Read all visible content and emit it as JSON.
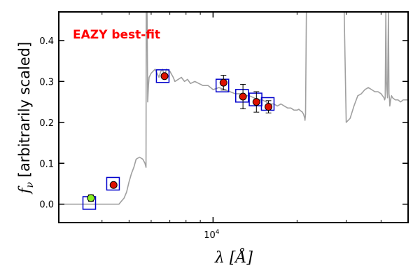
{
  "chart_data": {
    "type": "scatter",
    "annotation": "EAZY best-fit",
    "annotation_color": "#ff0000",
    "xlabel": "λ [Å]",
    "ylabel": "f",
    "ylabel_sub": "ν",
    "ylabel_rest": " [arbitrarily scaled]",
    "xscale": "log",
    "xlim": [
      2800,
      50000
    ],
    "ylim": [
      -0.045,
      0.47
    ],
    "x_tick_labels": [
      {
        "value": 10000,
        "base": "10",
        "exp": "4"
      }
    ],
    "x_minor_ticks": [
      4000,
      5000,
      6000,
      7000,
      8000,
      9000,
      20000,
      30000,
      40000
    ],
    "y_ticks": [
      0.0,
      0.1,
      0.2,
      0.3,
      0.4
    ],
    "y_tick_labels": [
      "0.0",
      "0.1",
      "0.2",
      "0.3",
      "0.4"
    ],
    "colors": {
      "sed_line": "#a0a0a0",
      "model_box": "#0000cc",
      "observed_point": "#dd1100",
      "upper_point": "#88ee22",
      "errorbar": "#000000"
    },
    "sed_curve": {
      "x": [
        2800,
        4400,
        4600,
        4800,
        4900,
        5000,
        5100,
        5200,
        5300,
        5450,
        5600,
        5700,
        5750,
        5760,
        5780,
        5800,
        5830,
        5870,
        5900,
        6000,
        6100,
        6200,
        6300,
        6400,
        6500,
        6600,
        6700,
        6800,
        7000,
        7200,
        7300,
        7500,
        7700,
        7900,
        8100,
        8300,
        8600,
        8900,
        9200,
        9600,
        10000,
        10500,
        11000,
        11500,
        12000,
        12500,
        13000,
        13500,
        14000,
        14500,
        15000,
        15500,
        16000,
        16500,
        17000,
        17500,
        18000,
        18500,
        19000,
        19500,
        20000,
        20300,
        20600,
        20900,
        21100,
        21200,
        21300,
        21350,
        21450,
        21600,
        21900,
        22200,
        22500,
        22800,
        23200,
        23500,
        24000,
        24500,
        25000,
        25500,
        26000,
        26500,
        27000,
        27500,
        28000,
        28500,
        29000,
        29500,
        30000,
        31000,
        32000,
        33000,
        34000,
        35000,
        36000,
        37000,
        38000,
        39000,
        40000,
        40500,
        41000,
        41200,
        41400,
        41600,
        41800,
        42200,
        42500,
        42700,
        42850,
        43000,
        43300,
        43600,
        44000,
        45000,
        46000,
        47000,
        48000,
        49000,
        50000
      ],
      "y": [
        0.0,
        0.0,
        0.0,
        0.015,
        0.03,
        0.055,
        0.075,
        0.09,
        0.11,
        0.115,
        0.11,
        0.1,
        0.09,
        0.47,
        0.47,
        0.47,
        0.25,
        0.29,
        0.31,
        0.32,
        0.325,
        0.33,
        0.32,
        0.31,
        0.325,
        0.33,
        0.31,
        0.33,
        0.325,
        0.31,
        0.3,
        0.305,
        0.31,
        0.3,
        0.305,
        0.295,
        0.3,
        0.295,
        0.29,
        0.29,
        0.28,
        0.285,
        0.28,
        0.275,
        0.27,
        0.27,
        0.265,
        0.265,
        0.26,
        0.255,
        0.255,
        0.25,
        0.245,
        0.245,
        0.24,
        0.245,
        0.24,
        0.235,
        0.235,
        0.23,
        0.23,
        0.232,
        0.228,
        0.225,
        0.22,
        0.215,
        0.21,
        0.205,
        0.22,
        0.47,
        0.47,
        0.47,
        0.47,
        0.47,
        0.47,
        0.47,
        0.47,
        0.47,
        0.47,
        0.47,
        0.47,
        0.47,
        0.47,
        0.47,
        0.47,
        0.47,
        0.47,
        0.47,
        0.2,
        0.21,
        0.24,
        0.265,
        0.27,
        0.28,
        0.285,
        0.28,
        0.275,
        0.275,
        0.27,
        0.265,
        0.26,
        0.255,
        0.26,
        0.47,
        0.3,
        0.26,
        0.47,
        0.27,
        0.26,
        0.24,
        0.255,
        0.265,
        0.26,
        0.255,
        0.255,
        0.25,
        0.255,
        0.255,
        0.255
      ]
    },
    "model_boxes": [
      {
        "x": 3600,
        "y": 0.003
      },
      {
        "x": 4380,
        "y": 0.05
      },
      {
        "x": 6600,
        "y": 0.313
      },
      {
        "x": 10800,
        "y": 0.29
      },
      {
        "x": 12700,
        "y": 0.265
      },
      {
        "x": 14200,
        "y": 0.256
      },
      {
        "x": 15700,
        "y": 0.245
      }
    ],
    "observed_points": [
      {
        "x": 3650,
        "y": 0.015,
        "yerr": 0.008,
        "kind": "upper"
      },
      {
        "x": 4400,
        "y": 0.047,
        "yerr": 0.0,
        "kind": "detected"
      },
      {
        "x": 6700,
        "y": 0.313,
        "yerr": 0.0,
        "kind": "detected"
      },
      {
        "x": 10900,
        "y": 0.297,
        "yerr": 0.018,
        "kind": "detected"
      },
      {
        "x": 12800,
        "y": 0.263,
        "yerr": 0.03,
        "kind": "detected"
      },
      {
        "x": 14300,
        "y": 0.25,
        "yerr": 0.025,
        "kind": "detected"
      },
      {
        "x": 15800,
        "y": 0.238,
        "yerr": 0.015,
        "kind": "detected"
      }
    ]
  }
}
